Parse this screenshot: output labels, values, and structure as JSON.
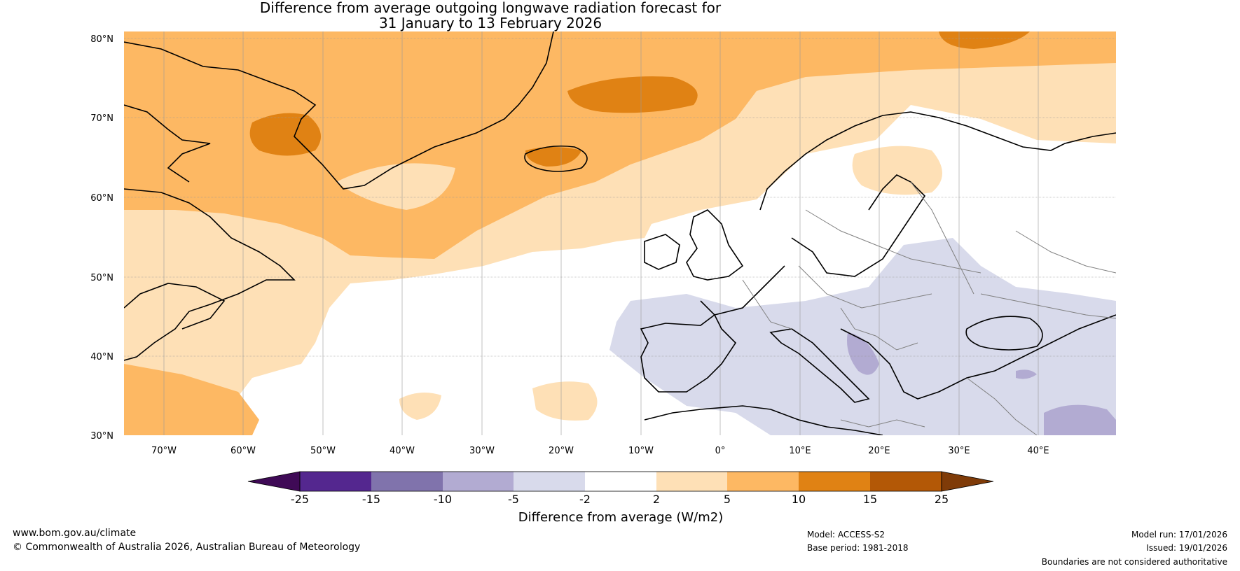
{
  "title_line1": "Difference from average outgoing longwave radiation forecast for",
  "title_line2": "31 January to 13 February 2026",
  "lat_labels": [
    "80°N",
    "70°N",
    "60°N",
    "50°N",
    "40°N",
    "30°N"
  ],
  "lon_labels": [
    "70°W",
    "60°W",
    "50°W",
    "40°W",
    "30°W",
    "20°W",
    "10°W",
    "0°",
    "10°E",
    "20°E",
    "30°E",
    "40°E"
  ],
  "colorbar": {
    "ticks": [
      "-25",
      "-15",
      "-10",
      "-5",
      "-2",
      "2",
      "5",
      "10",
      "15",
      "25"
    ],
    "colors": [
      "#3f0a56",
      "#54278f",
      "#8073ac",
      "#b2abd2",
      "#d8daeb",
      "#ffffff",
      "#fee0b6",
      "#fdb863",
      "#e08214",
      "#b35806",
      "#7f3b08"
    ],
    "label": "Difference from average (W/m2)"
  },
  "footer": {
    "url": "www.bom.gov.au/climate",
    "copyright": "© Commonwealth of Australia 2026, Australian Bureau of Meteorology",
    "model": "Model: ACCESS-S2",
    "base_period": "Base period: 1981-2018",
    "model_run": "Model run: 17/01/2026",
    "issued": "Issued: 19/01/2026",
    "disclaimer": "Boundaries are not considered authoritative"
  }
}
